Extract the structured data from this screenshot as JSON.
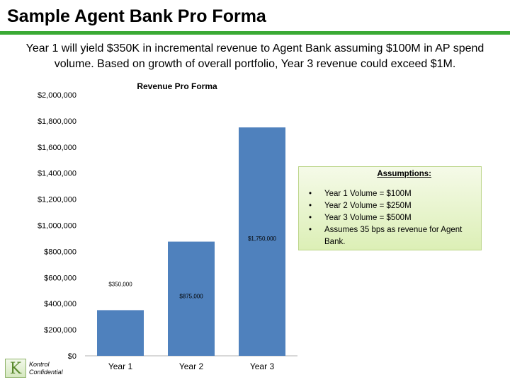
{
  "slide": {
    "title": "Sample Agent Bank Pro Forma",
    "subtitle": "Year 1 will yield $350K in incremental revenue to Agent Bank assuming $100M in AP spend volume. Based on growth of overall portfolio, Year 3 revenue could exceed $1M.",
    "accent_color": "#3aaa35"
  },
  "chart_data": {
    "type": "bar",
    "title": "Revenue Pro Forma",
    "categories": [
      "Year 1",
      "Year 2",
      "Year 3"
    ],
    "values": [
      350000,
      875000,
      1750000
    ],
    "data_labels": [
      "$350,000",
      "$875,000",
      "$1,750,000"
    ],
    "ylim": [
      0,
      2000000
    ],
    "yticks": [
      0,
      200000,
      400000,
      600000,
      800000,
      1000000,
      1200000,
      1400000,
      1600000,
      1800000,
      2000000
    ],
    "ytick_labels": [
      "$0",
      "$200,000",
      "$400,000",
      "$600,000",
      "$800,000",
      "$1,000,000",
      "$1,200,000",
      "$1,400,000",
      "$1,600,000",
      "$1,800,000",
      "$2,000,000"
    ],
    "bar_color": "#4f81bd",
    "grid": false,
    "legend": "none"
  },
  "assumptions": {
    "title": "Assumptions:",
    "items": [
      "Year 1 Volume = $100M",
      "Year 2 Volume = $250M",
      "Year 3 Volume = $500M",
      "Assumes 35 bps as revenue for Agent Bank."
    ]
  },
  "footer": {
    "logo_letter": "K",
    "logo_text_1": "Kontrol",
    "logo_text_2": "Confidential"
  }
}
